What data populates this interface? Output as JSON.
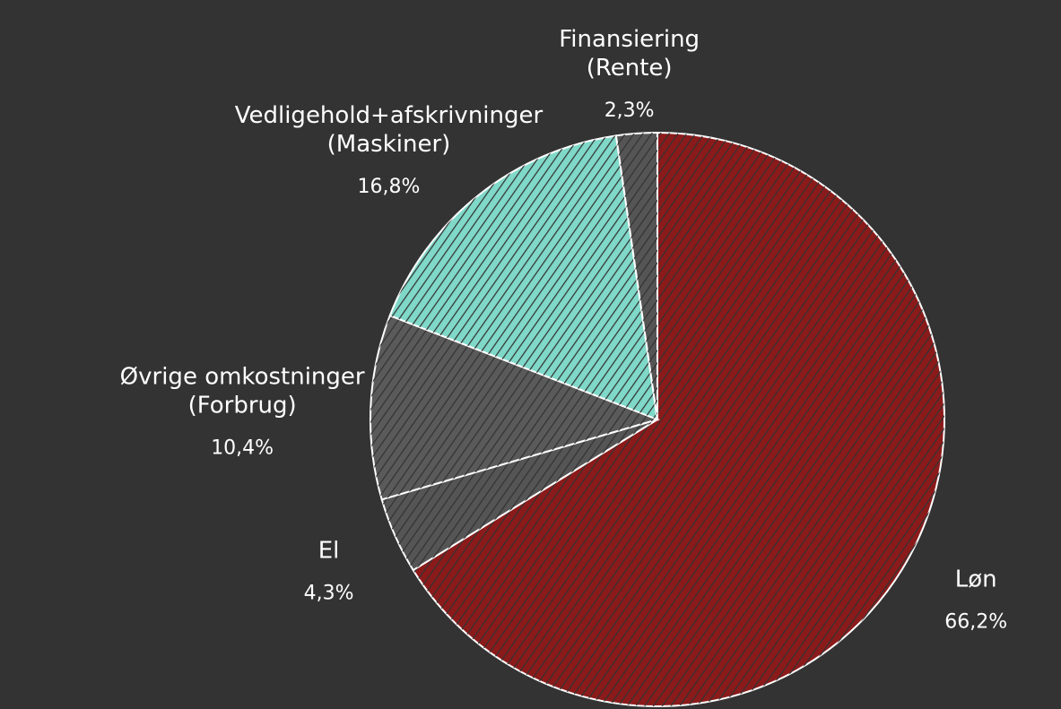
{
  "chart_data": {
    "type": "pie",
    "categories": [
      "Løn",
      "El",
      "Øvrige omkostninger (Forbrug)",
      "Vedligehold+afskrivninger (Maskiner)",
      "Finansiering (Rente)"
    ],
    "values": [
      66.2,
      4.3,
      10.4,
      16.8,
      2.3
    ],
    "value_labels": [
      "66,2%",
      "4,3%",
      "10,4%",
      "16,8%",
      "2,3%"
    ],
    "colors": [
      "#8b1a1a",
      "#555555",
      "#5a5a5a",
      "#7fd8c8",
      "#555555"
    ]
  }
}
